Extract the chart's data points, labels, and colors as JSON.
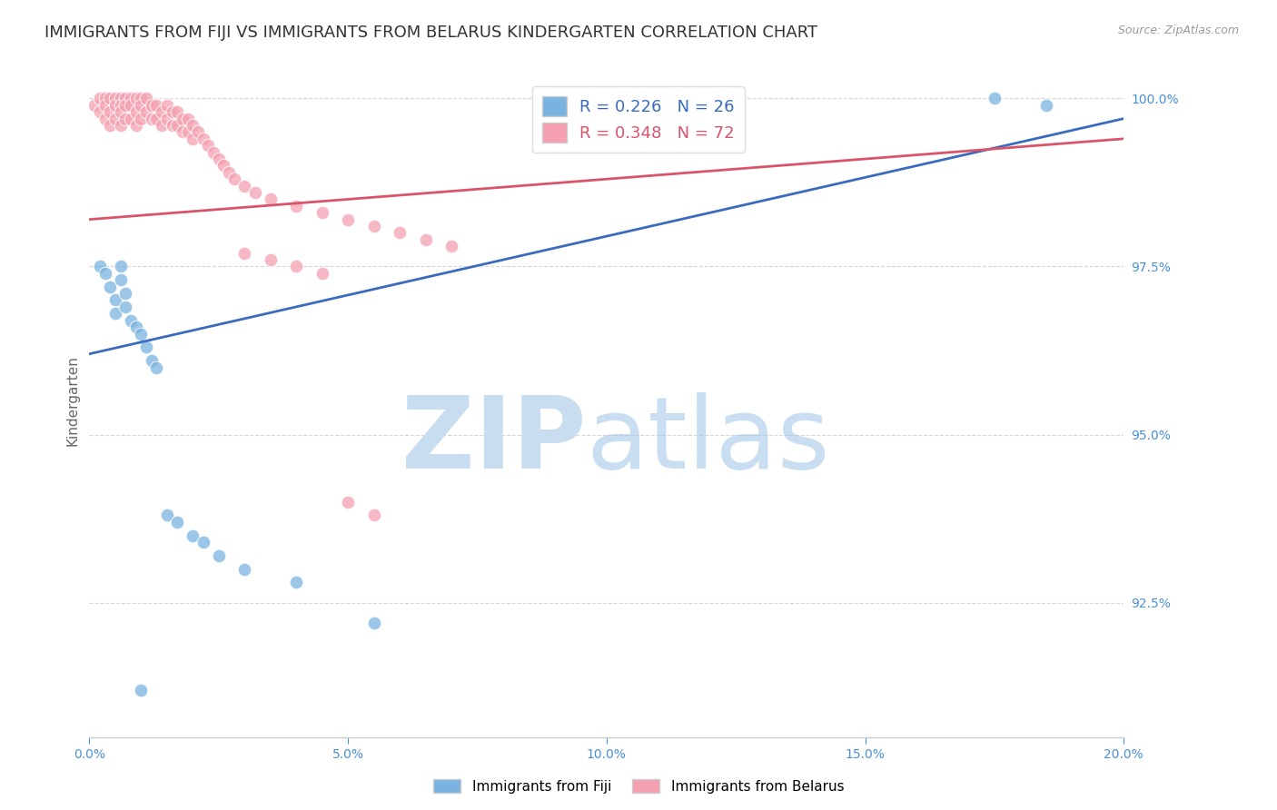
{
  "title": "IMMIGRANTS FROM FIJI VS IMMIGRANTS FROM BELARUS KINDERGARTEN CORRELATION CHART",
  "source": "Source: ZipAtlas.com",
  "ylabel_label": "Kindergarten",
  "xlim": [
    0.0,
    0.2
  ],
  "ylim": [
    0.905,
    1.005
  ],
  "yticks": [
    0.925,
    0.95,
    0.975,
    1.0
  ],
  "ytick_labels": [
    "92.5%",
    "95.0%",
    "97.5%",
    "100.0%"
  ],
  "xticks": [
    0.0,
    0.05,
    0.1,
    0.15,
    0.2
  ],
  "xtick_labels": [
    "0.0%",
    "5.0%",
    "10.0%",
    "15.0%",
    "20.0%"
  ],
  "fiji_R": 0.226,
  "fiji_N": 26,
  "belarus_R": 0.348,
  "belarus_N": 72,
  "fiji_color": "#7ab3e0",
  "belarus_color": "#f4a0b0",
  "fiji_line_color": "#3a6bbf",
  "belarus_line_color": "#d9546a",
  "fiji_x": [
    0.002,
    0.003,
    0.004,
    0.005,
    0.005,
    0.006,
    0.006,
    0.007,
    0.007,
    0.008,
    0.009,
    0.01,
    0.011,
    0.012,
    0.013,
    0.015,
    0.017,
    0.02,
    0.022,
    0.025,
    0.03,
    0.04,
    0.055,
    0.175,
    0.185,
    0.01
  ],
  "fiji_y": [
    0.975,
    0.974,
    0.972,
    0.97,
    0.968,
    0.975,
    0.973,
    0.971,
    0.969,
    0.967,
    0.966,
    0.965,
    0.963,
    0.961,
    0.96,
    0.938,
    0.937,
    0.935,
    0.934,
    0.932,
    0.93,
    0.928,
    0.922,
    1.0,
    0.999,
    0.912
  ],
  "belarus_x": [
    0.001,
    0.002,
    0.002,
    0.003,
    0.003,
    0.003,
    0.004,
    0.004,
    0.004,
    0.005,
    0.005,
    0.005,
    0.006,
    0.006,
    0.006,
    0.006,
    0.007,
    0.007,
    0.007,
    0.008,
    0.008,
    0.008,
    0.009,
    0.009,
    0.009,
    0.01,
    0.01,
    0.01,
    0.011,
    0.011,
    0.012,
    0.012,
    0.013,
    0.013,
    0.014,
    0.014,
    0.015,
    0.015,
    0.016,
    0.016,
    0.017,
    0.017,
    0.018,
    0.018,
    0.019,
    0.019,
    0.02,
    0.02,
    0.021,
    0.022,
    0.023,
    0.024,
    0.025,
    0.026,
    0.027,
    0.028,
    0.03,
    0.032,
    0.035,
    0.04,
    0.045,
    0.05,
    0.055,
    0.06,
    0.065,
    0.07,
    0.03,
    0.035,
    0.04,
    0.045,
    0.05,
    0.055
  ],
  "belarus_y": [
    0.999,
    1.0,
    0.998,
    1.0,
    0.999,
    0.997,
    1.0,
    0.998,
    0.996,
    1.0,
    0.999,
    0.997,
    1.0,
    0.999,
    0.998,
    0.996,
    1.0,
    0.999,
    0.997,
    1.0,
    0.999,
    0.997,
    1.0,
    0.998,
    0.996,
    1.0,
    0.999,
    0.997,
    1.0,
    0.998,
    0.999,
    0.997,
    0.999,
    0.997,
    0.998,
    0.996,
    0.999,
    0.997,
    0.998,
    0.996,
    0.998,
    0.996,
    0.997,
    0.995,
    0.997,
    0.995,
    0.996,
    0.994,
    0.995,
    0.994,
    0.993,
    0.992,
    0.991,
    0.99,
    0.989,
    0.988,
    0.987,
    0.986,
    0.985,
    0.984,
    0.983,
    0.982,
    0.981,
    0.98,
    0.979,
    0.978,
    0.977,
    0.976,
    0.975,
    0.974,
    0.94,
    0.938
  ],
  "background_color": "#ffffff",
  "grid_color": "#cccccc",
  "tick_color": "#4a90d9",
  "title_color": "#333333",
  "title_fontsize": 13,
  "axis_label_color": "#666666",
  "blue_line_x0": 0.0,
  "blue_line_y0": 0.962,
  "blue_line_x1": 0.2,
  "blue_line_y1": 0.997,
  "pink_line_x0": 0.0,
  "pink_line_y0": 0.982,
  "pink_line_x1": 0.2,
  "pink_line_y1": 0.994
}
